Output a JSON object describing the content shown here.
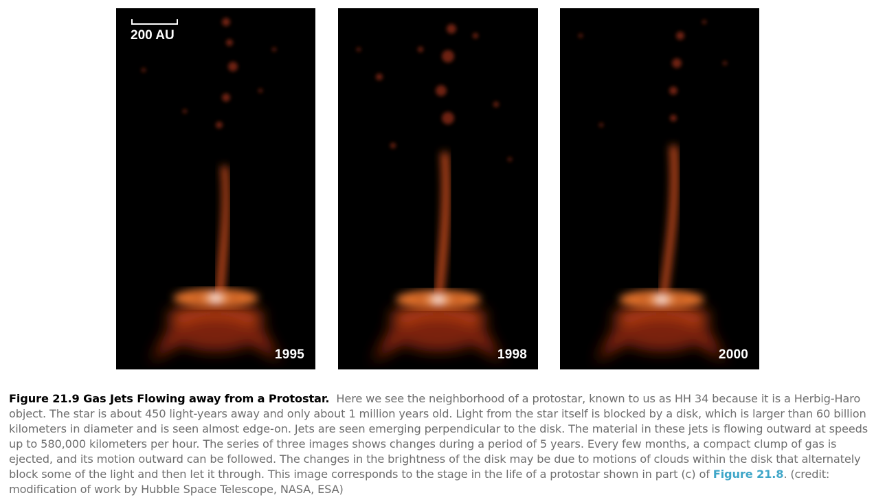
{
  "figure": {
    "scale_label": "200 AU",
    "panels": [
      {
        "year": "1995"
      },
      {
        "year": "1998"
      },
      {
        "year": "2000"
      }
    ]
  },
  "caption": {
    "title": "Figure 21.9 Gas Jets Flowing away from a Protostar.",
    "text_before_link": "Here we see the neighborhood of a protostar, known to us as HH 34 because it is a Herbig-Haro object. The star is about 450 light-years away and only about 1 million years old. Light from the star itself is blocked by a disk, which is larger than 60 billion kilometers in diameter and is seen almost edge-on. Jets are seen emerging perpendicular to the disk. The material in these jets is flowing outward at speeds up to 580,000 kilometers per hour. The series of three images shows changes during a period of 5 years. Every few months, a compact clump of gas is ejected, and its motion outward can be followed. The changes in the brightness of the disk may be due to motions of clouds within the disk that alternately block some of the light and then let it through. This image corresponds to the stage in the life of a protostar shown in part (c) of",
    "link_text": "Figure 21.8",
    "text_after_link": ". (credit: modification of work by Hubble Space Telescope, NASA, ESA)"
  }
}
